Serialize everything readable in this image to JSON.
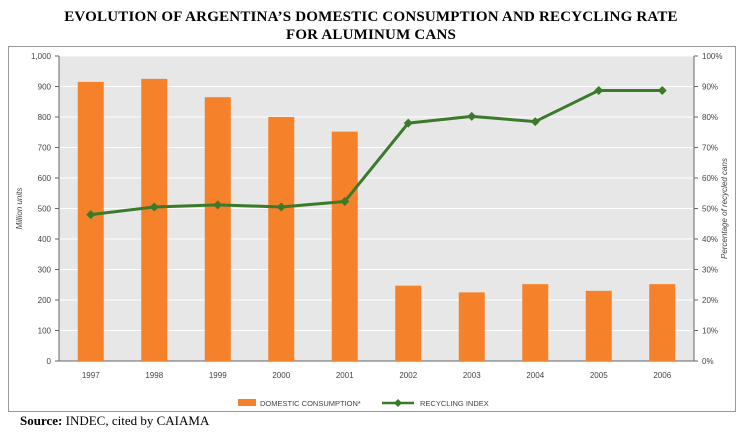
{
  "title_line1": "EVOLUTION OF ARGENTINA’S DOMESTIC CONSUMPTION AND RECYCLING RATE",
  "title_line2": "FOR ALUMINUM CANS",
  "source_label": "Source:",
  "source_text": " INDEC, cited by CAIAMA",
  "colors": {
    "bar": "#f5822a",
    "line": "#3b7a2a",
    "plot_bg": "#e7e7e7",
    "grid": "#ffffff",
    "text": "#444444"
  },
  "chart_data": {
    "type": "bar+line",
    "categories": [
      "1997",
      "1998",
      "1999",
      "2000",
      "2001",
      "2002",
      "2003",
      "2004",
      "2005",
      "2006"
    ],
    "series": [
      {
        "name": "DOMESTIC CONSUMPTION*",
        "type": "bar",
        "axis": "left",
        "values": [
          915,
          925,
          865,
          800,
          752,
          247,
          225,
          252,
          230,
          252
        ]
      },
      {
        "name": "RECYCLING INDEX",
        "type": "line",
        "axis": "right",
        "values": [
          48,
          50.5,
          51.2,
          50.5,
          52.3,
          78,
          80.2,
          78.5,
          88.7,
          88.7
        ]
      }
    ],
    "ylabel": "Million units",
    "y2label": "Percentage of recycled cans",
    "ylim": [
      0,
      1000
    ],
    "y2lim": [
      0,
      100
    ],
    "yticks": [
      "0",
      "100",
      "200",
      "300",
      "400",
      "500",
      "600",
      "700",
      "800",
      "900",
      "1,000"
    ],
    "y2ticks": [
      "0%",
      "10%",
      "20%",
      "30%",
      "40%",
      "50%",
      "60%",
      "70%",
      "80%",
      "90%",
      "100%"
    ],
    "grid": true,
    "legend_position": "bottom"
  }
}
